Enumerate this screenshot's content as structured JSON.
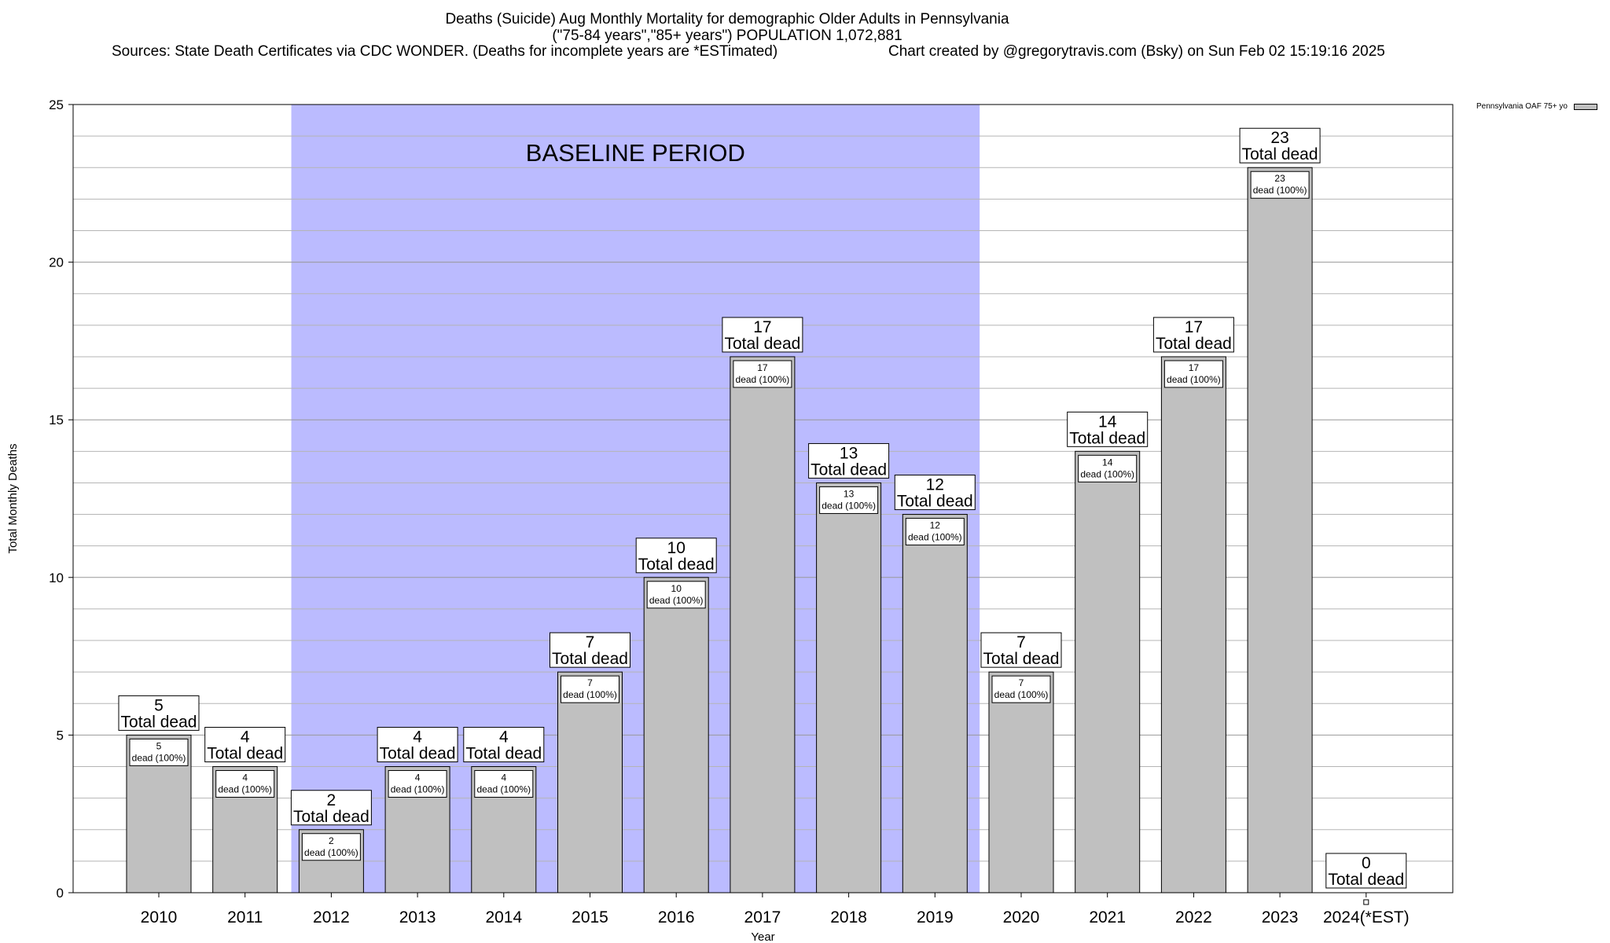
{
  "chart": {
    "title_line_1": "Deaths (Suicide) Aug Monthly Mortality for demographic Older Adults in Pennsylvania",
    "title_line_2": "(\"75-84 years\",\"85+ years\") POPULATION 1,072,881",
    "sources": "Sources: State Death Certificates via CDC WONDER. (Deaths for incomplete years are *ESTimated)",
    "credit": "Chart created by @gregorytravis.com (Bsky) on Sun Feb 02 15:19:16 2025",
    "legend_label": "Pennsylvania OAF 75+ yo",
    "baseline_label": "BASELINE PERIOD",
    "total_dead_suffix": "Total dead",
    "dead_pct_suffix": "dead (100%)"
  },
  "chart_data": {
    "type": "bar",
    "categories": [
      "2010",
      "2011",
      "2012",
      "2013",
      "2014",
      "2015",
      "2016",
      "2017",
      "2018",
      "2019",
      "2020",
      "2021",
      "2022",
      "2023",
      "2024(*EST)"
    ],
    "series": [
      {
        "name": "Pennsylvania OAF 75+ yo",
        "values": [
          5,
          4,
          2,
          4,
          4,
          7,
          10,
          17,
          13,
          12,
          7,
          14,
          17,
          23,
          0
        ]
      }
    ],
    "xlabel": "Year",
    "ylabel": "Total Monthly Deaths",
    "ylim": [
      0,
      25
    ],
    "yticks": [
      0,
      5,
      10,
      15,
      20,
      25
    ],
    "baseline_period": [
      "2012",
      "2019"
    ],
    "bar_color": "#c0c0c0",
    "baseline_color": "#bbbbff",
    "grid": true
  }
}
